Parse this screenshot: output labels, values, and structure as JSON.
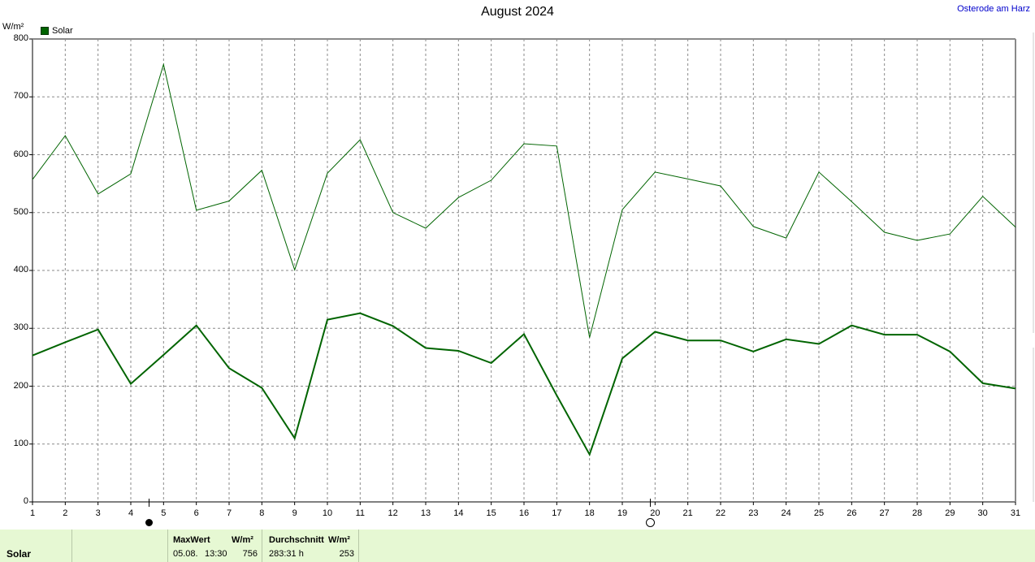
{
  "chart_data": {
    "type": "line",
    "title": "August 2024",
    "location": "Osterode am Harz",
    "ylabel": "W/m²",
    "ylim": [
      0,
      800
    ],
    "yticks": [
      0,
      100,
      200,
      300,
      400,
      500,
      600,
      700,
      800
    ],
    "x": [
      1,
      2,
      3,
      4,
      5,
      6,
      7,
      8,
      9,
      10,
      11,
      12,
      13,
      14,
      15,
      16,
      17,
      18,
      19,
      20,
      21,
      22,
      23,
      24,
      25,
      26,
      27,
      28,
      29,
      30,
      31
    ],
    "xlim": [
      1,
      31
    ],
    "grid": true,
    "legend": "top-left",
    "series": [
      {
        "name": "Solar",
        "role": "average",
        "color": "#006400",
        "width": 2,
        "values": [
          253,
          276,
          298,
          204,
          254,
          305,
          231,
          197,
          110,
          315,
          326,
          304,
          266,
          261,
          240,
          290,
          184,
          82,
          248,
          294,
          279,
          279,
          260,
          281,
          273,
          305,
          289,
          289,
          260,
          205,
          196
        ]
      },
      {
        "name": "",
        "role": "maximum",
        "color": "#006400",
        "width": 1,
        "values": [
          557,
          633,
          532,
          567,
          756,
          504,
          520,
          573,
          401,
          568,
          626,
          500,
          473,
          526,
          556,
          619,
          615,
          284,
          505,
          570,
          558,
          546,
          476,
          456,
          570,
          519,
          466,
          452,
          463,
          528,
          475
        ]
      }
    ],
    "moon_phases": [
      {
        "phase": "new",
        "day": 4.55
      },
      {
        "phase": "full",
        "day": 19.85
      }
    ]
  },
  "footer": {
    "label": "Solar",
    "max_title": "MaxWert",
    "max_unit": "W/m²",
    "max_date": "05.08.",
    "max_time": "13:30",
    "max_value": "756",
    "avg_title": "Durchschnitt",
    "avg_unit": "W/m²",
    "avg_duration": "283:31 h",
    "avg_value": "253"
  }
}
